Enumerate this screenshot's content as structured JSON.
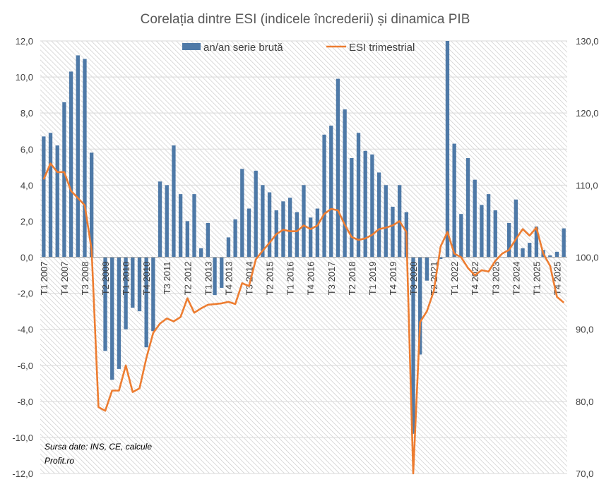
{
  "chart_data": {
    "type": "bar+line",
    "title": "Corelația dintre ESI  (indicele încrederii) și dinamica PIB",
    "source_lines": [
      "Sursa date: INS, CE, calcule",
      "Profit.ro"
    ],
    "colors": {
      "bar": "#4E79A7",
      "line": "#ED7D31",
      "grid": "#D9D9D9",
      "hatch": "#D0D0D0"
    },
    "grid": true,
    "legend_position": "top",
    "y_left": {
      "min": -12,
      "max": 12,
      "ticks": [
        "12,0",
        "10,0",
        "8,0",
        "6,0",
        "4,0",
        "2,0",
        "0,0",
        "-2,0",
        "-4,0",
        "-6,0",
        "-8,0",
        "-10,0",
        "-12,0"
      ]
    },
    "y_right": {
      "min": 70,
      "max": 130,
      "ticks": [
        "130,0",
        "120,0",
        "110,0",
        "100,0",
        "90,0",
        "80,0",
        "70,0"
      ]
    },
    "x_tick_labels": [
      {
        "index": 0,
        "label": "T1 2007"
      },
      {
        "index": 3,
        "label": "T4 2007"
      },
      {
        "index": 6,
        "label": "T3 2008"
      },
      {
        "index": 9,
        "label": "T2 2009"
      },
      {
        "index": 12,
        "label": "T1 2010"
      },
      {
        "index": 15,
        "label": "T4 2010"
      },
      {
        "index": 18,
        "label": "T3 2011"
      },
      {
        "index": 21,
        "label": "T2 2012"
      },
      {
        "index": 24,
        "label": "T1 2013"
      },
      {
        "index": 27,
        "label": "T4 2013"
      },
      {
        "index": 30,
        "label": "T3 2014"
      },
      {
        "index": 33,
        "label": "T2 2015"
      },
      {
        "index": 36,
        "label": "T1 2016"
      },
      {
        "index": 39,
        "label": "T4 2016"
      },
      {
        "index": 42,
        "label": "T3 2017"
      },
      {
        "index": 45,
        "label": "T2 2018"
      },
      {
        "index": 48,
        "label": "T1 2019"
      },
      {
        "index": 51,
        "label": "T4 2019"
      },
      {
        "index": 54,
        "label": "T3 2020"
      },
      {
        "index": 57,
        "label": "T2 2021"
      },
      {
        "index": 60,
        "label": "T1 2022"
      },
      {
        "index": 63,
        "label": "T4 2022"
      },
      {
        "index": 66,
        "label": "T3 2023"
      },
      {
        "index": 69,
        "label": "T2 2024"
      },
      {
        "index": 72,
        "label": "T1 2025"
      },
      {
        "index": 75,
        "label": "T4 2025"
      }
    ],
    "series": [
      {
        "name": "an/an serie brută",
        "kind": "bar",
        "axis": "left",
        "values": [
          6.7,
          6.9,
          6.2,
          8.6,
          10.3,
          11.2,
          11.0,
          5.8,
          0.0,
          -5.2,
          -6.8,
          -6.2,
          -4.0,
          -2.8,
          -3.0,
          -5.0,
          -4.1,
          4.2,
          4.0,
          6.2,
          3.5,
          2.0,
          3.5,
          0.5,
          1.9,
          -2.1,
          -1.7,
          1.1,
          2.1,
          4.9,
          2.7,
          4.8,
          4.0,
          3.6,
          2.6,
          3.1,
          3.3,
          2.5,
          4.0,
          2.2,
          2.7,
          6.8,
          7.3,
          9.9,
          8.2,
          5.5,
          6.9,
          5.9,
          5.7,
          4.7,
          4.0,
          2.8,
          4.0,
          2.5,
          -9.8,
          -5.4,
          -1.3,
          0.0,
          -0.1,
          12.5,
          6.3,
          2.4,
          5.5,
          4.3,
          2.9,
          3.5,
          2.6,
          0.0,
          1.9,
          3.2,
          0.5,
          0.8,
          1.7,
          0.4,
          0.1,
          0.3,
          1.6
        ]
      },
      {
        "name": "ESI trimestrial",
        "kind": "line",
        "axis": "right",
        "values": [
          110.8,
          113.0,
          111.8,
          111.8,
          109.2,
          108.2,
          107.2,
          101.0,
          79.2,
          78.7,
          81.5,
          81.5,
          85.0,
          81.3,
          81.8,
          86.0,
          89.5,
          90.8,
          91.5,
          91.1,
          91.7,
          94.3,
          92.3,
          92.9,
          93.4,
          93.5,
          93.6,
          93.8,
          93.5,
          96.4,
          96.0,
          99.7,
          100.9,
          102.0,
          103.2,
          103.8,
          103.6,
          103.6,
          104.4,
          103.9,
          104.4,
          106.0,
          106.7,
          106.5,
          104.5,
          102.8,
          102.4,
          102.6,
          103.1,
          103.9,
          104.1,
          104.4,
          105.0,
          103.5,
          70.0,
          91.0,
          92.5,
          95.3,
          101.5,
          103.5,
          100.5,
          100.0,
          98.5,
          97.5,
          98.2,
          98.0,
          99.5,
          100.5,
          101.0,
          102.5,
          103.9,
          103.0,
          104.1,
          100.5,
          98.8,
          94.5,
          93.7
        ]
      }
    ]
  }
}
